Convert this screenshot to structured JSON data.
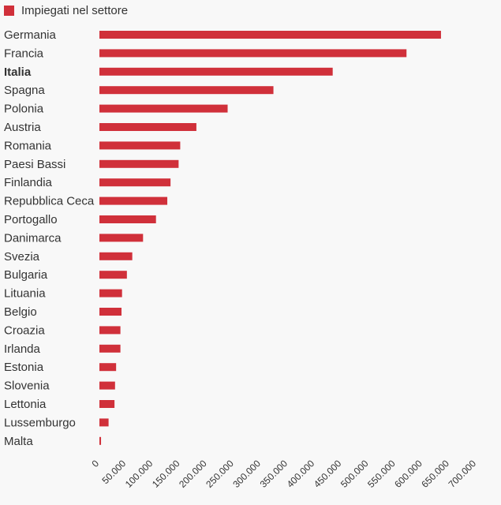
{
  "legend": {
    "label": "Impiegati nel settore",
    "color": "#d0303a"
  },
  "chart_data": {
    "type": "bar",
    "orientation": "horizontal",
    "categories": [
      "Germania",
      "Francia",
      "Italia",
      "Spagna",
      "Polonia",
      "Austria",
      "Romania",
      "Paesi Bassi",
      "Finlandia",
      "Repubblica Ceca",
      "Portogallo",
      "Danimarca",
      "Svezia",
      "Bulgaria",
      "Lituania",
      "Belgio",
      "Croazia",
      "Irlanda",
      "Estonia",
      "Slovenia",
      "Lettonia",
      "Lussemburgo",
      "Malta"
    ],
    "highlighted_category": "Italia",
    "series": [
      {
        "name": "Impiegati nel settore",
        "values": [
          634000,
          570000,
          433000,
          323000,
          238000,
          180000,
          150000,
          147000,
          132000,
          126000,
          105000,
          81000,
          61000,
          51000,
          42000,
          41000,
          39000,
          39000,
          31000,
          29000,
          28000,
          17000,
          3000
        ]
      }
    ],
    "xlim": [
      0,
      700000
    ],
    "x_ticks": [
      "0",
      "50.000",
      "100.000",
      "150.000",
      "200.000",
      "250.000",
      "300.000",
      "350.000",
      "400.000",
      "450.000",
      "500.000",
      "550.000",
      "600.000",
      "650.000",
      "700.000"
    ],
    "x_tick_values": [
      0,
      50000,
      100000,
      150000,
      200000,
      250000,
      300000,
      350000,
      400000,
      450000,
      500000,
      550000,
      600000,
      650000,
      700000
    ],
    "grid": false,
    "legend_position": "top-left"
  }
}
